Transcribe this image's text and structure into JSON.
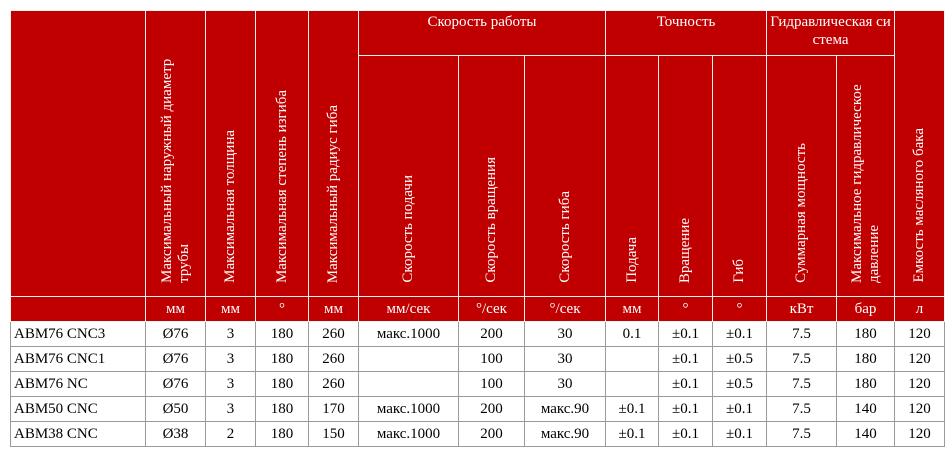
{
  "header": {
    "groups": [
      "Скорость работы",
      "Точность",
      "Гидравлическая система"
    ],
    "columns": [
      "Максимальный наружный диаметр трубы",
      "Максимальная толщина",
      "Максимальная степень изгиба",
      "Максимальный радиус гиба",
      "Скорость подачи",
      "Скорость вращения",
      "Скорость гиба",
      "Подача",
      "Вращение",
      "Гиб",
      "Суммарная мощность",
      "Максимальное гидравлическое давление",
      "Емкость масляного бака"
    ],
    "units": [
      "мм",
      "мм",
      "°",
      "мм",
      "мм/сек",
      "°/сек",
      "°/сек",
      "мм",
      "°",
      "°",
      "кВт",
      "бар",
      "л"
    ]
  },
  "rows": [
    [
      "ABM76 CNC3",
      "Ø76",
      "3",
      "180",
      "260",
      "макс.1000",
      "200",
      "30",
      "0.1",
      "±0.1",
      "±0.1",
      "7.5",
      "180",
      "120"
    ],
    [
      "ABM76 CNC1",
      "Ø76",
      "3",
      "180",
      "260",
      null,
      "100",
      "30",
      null,
      "±0.1",
      "±0.5",
      "7.5",
      "180",
      "120"
    ],
    [
      "ABM76 NC",
      "Ø76",
      "3",
      "180",
      "260",
      null,
      "100",
      "30",
      null,
      "±0.1",
      "±0.5",
      "7.5",
      "180",
      "120"
    ],
    [
      "ABM50 CNC",
      "Ø50",
      "3",
      "180",
      "170",
      "макс.1000",
      "200",
      "макс.90",
      "±0.1",
      "±0.1",
      "±0.1",
      "7.5",
      "140",
      "120"
    ],
    [
      "ABM38 CNC",
      "Ø38",
      "2",
      "180",
      "150",
      "макс.1000",
      "200",
      "макс.90",
      "±0.1",
      "±0.1",
      "±0.1",
      "7.5",
      "140",
      "120"
    ]
  ]
}
